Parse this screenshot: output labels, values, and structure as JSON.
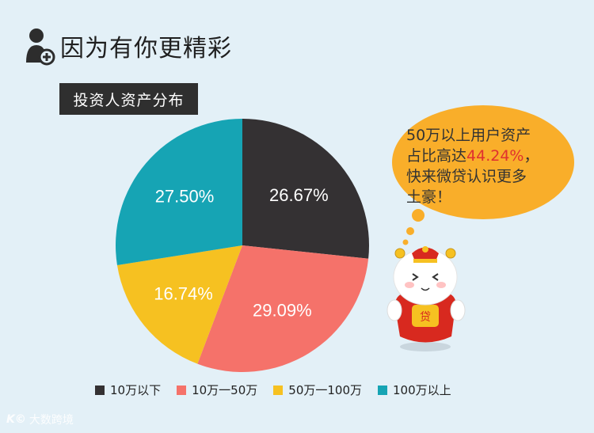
{
  "header": {
    "title": "因为有你更精彩",
    "icon": "user-plus-icon"
  },
  "chart_data": {
    "type": "pie",
    "title": "投资人资产分布",
    "categories": [
      "10万以下",
      "10万一50万",
      "50万一100万",
      "100万以上"
    ],
    "values": [
      26.67,
      29.09,
      16.74,
      27.5
    ],
    "labels": [
      "26.67%",
      "29.09%",
      "16.74%",
      "27.50%"
    ],
    "colors": [
      "#343133",
      "#f5726a",
      "#f6c121",
      "#16a4b4"
    ],
    "legend": "bottom"
  },
  "bubble": {
    "line1": "50万以上用户资产",
    "line2_prefix": "占比高达",
    "highlight": "44.24%",
    "line2_suffix": "，",
    "line3": "快来微贷认识更多",
    "line4": "土豪！",
    "fill": "#f9ae2a",
    "mascot_badge": "贷"
  },
  "watermark": {
    "logo": "K©",
    "text": "大数跨境"
  }
}
